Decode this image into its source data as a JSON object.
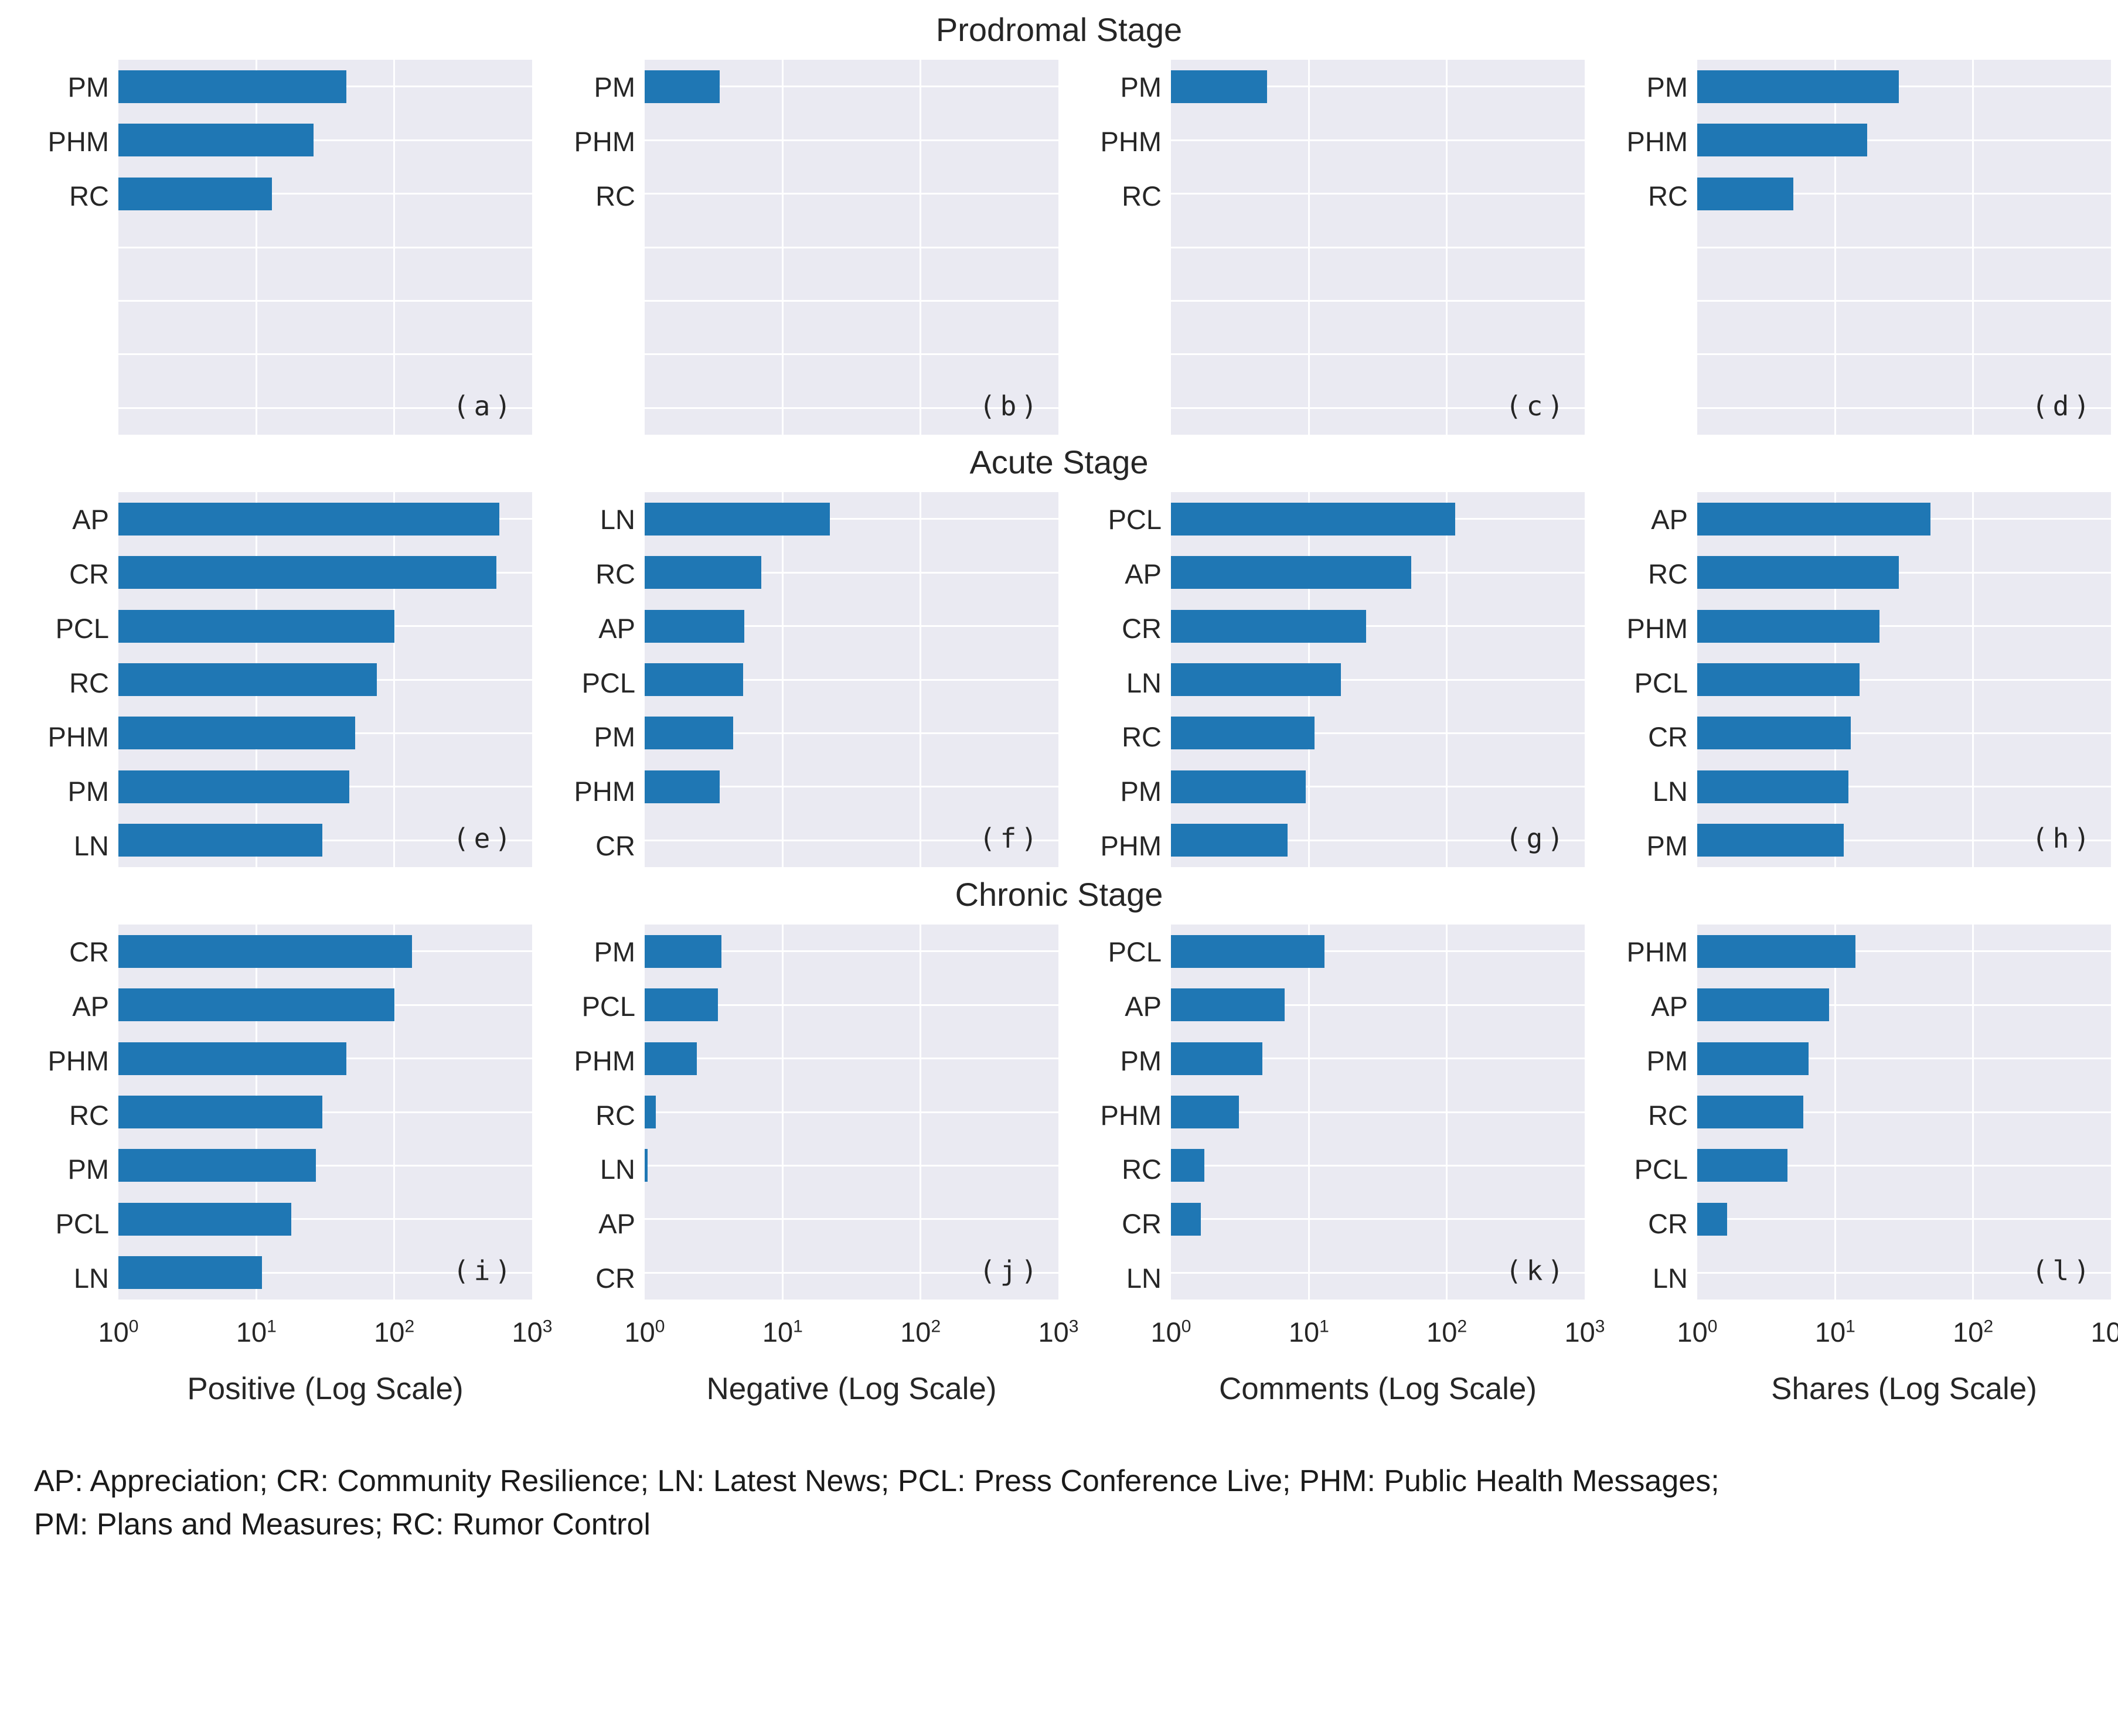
{
  "figure": {
    "row_titles": [
      "Prodromal Stage",
      "Acute Stage",
      "Chronic Stage"
    ],
    "x_axis_labels": [
      "Positive (Log Scale)",
      "Negative (Log Scale)",
      "Comments (Log Scale)",
      "Shares (Log Scale)"
    ],
    "x_ticks": {
      "base": "10",
      "exponents": [
        "0",
        "1",
        "2",
        "3"
      ]
    },
    "footnote_line1": "AP: Appreciation; CR: Community Resilience; LN: Latest News; PCL: Press Conference Live; PHM: Public Health Messages;",
    "footnote_line2": "PM: Plans and Measures; RC: Rumor Control",
    "colors": {
      "bar": "#1f77b4",
      "plot_bg": "#eaeaf2",
      "grid": "#ffffff",
      "text": "#262626"
    }
  },
  "chart_data": [
    {
      "type": "bar",
      "orientation": "horizontal",
      "x_scale": "log",
      "x_range": [
        1,
        1000
      ],
      "panel_label": "(a)",
      "stage": "Prodromal",
      "metric": "Positive",
      "categories": [
        "PM",
        "PHM",
        "RC"
      ],
      "values": [
        45,
        26,
        13
      ]
    },
    {
      "type": "bar",
      "orientation": "horizontal",
      "x_scale": "log",
      "x_range": [
        1,
        1000
      ],
      "panel_label": "(b)",
      "stage": "Prodromal",
      "metric": "Negative",
      "categories": [
        "PM",
        "PHM",
        "RC"
      ],
      "values": [
        3.5,
        1,
        1
      ]
    },
    {
      "type": "bar",
      "orientation": "horizontal",
      "x_scale": "log",
      "x_range": [
        1,
        1000
      ],
      "panel_label": "(c)",
      "stage": "Prodromal",
      "metric": "Comments",
      "categories": [
        "PM",
        "PHM",
        "RC"
      ],
      "values": [
        5,
        1,
        1
      ]
    },
    {
      "type": "bar",
      "orientation": "horizontal",
      "x_scale": "log",
      "x_range": [
        1,
        1000
      ],
      "panel_label": "(d)",
      "stage": "Prodromal",
      "metric": "Shares",
      "categories": [
        "PM",
        "PHM",
        "RC"
      ],
      "values": [
        29,
        17,
        5
      ]
    },
    {
      "type": "bar",
      "orientation": "horizontal",
      "x_scale": "log",
      "x_range": [
        1,
        1000
      ],
      "panel_label": "(e)",
      "stage": "Acute",
      "metric": "Positive",
      "categories": [
        "AP",
        "CR",
        "PCL",
        "RC",
        "PHM",
        "PM",
        "LN"
      ],
      "values": [
        580,
        550,
        100,
        75,
        52,
        47,
        30
      ]
    },
    {
      "type": "bar",
      "orientation": "horizontal",
      "x_scale": "log",
      "x_range": [
        1,
        1000
      ],
      "panel_label": "(f)",
      "stage": "Acute",
      "metric": "Negative",
      "categories": [
        "LN",
        "RC",
        "AP",
        "PCL",
        "PM",
        "PHM",
        "CR"
      ],
      "values": [
        22,
        7,
        5.3,
        5.2,
        4.4,
        3.5,
        1
      ]
    },
    {
      "type": "bar",
      "orientation": "horizontal",
      "x_scale": "log",
      "x_range": [
        1,
        1000
      ],
      "panel_label": "(g)",
      "stage": "Acute",
      "metric": "Comments",
      "categories": [
        "PCL",
        "AP",
        "CR",
        "LN",
        "RC",
        "PM",
        "PHM"
      ],
      "values": [
        115,
        55,
        26,
        17,
        11,
        9.5,
        7
      ]
    },
    {
      "type": "bar",
      "orientation": "horizontal",
      "x_scale": "log",
      "x_range": [
        1,
        1000
      ],
      "panel_label": "(h)",
      "stage": "Acute",
      "metric": "Shares",
      "categories": [
        "AP",
        "RC",
        "PHM",
        "PCL",
        "CR",
        "LN",
        "PM"
      ],
      "values": [
        49,
        29,
        21,
        15,
        13,
        12.5,
        11.5
      ]
    },
    {
      "type": "bar",
      "orientation": "horizontal",
      "x_scale": "log",
      "x_range": [
        1,
        1000
      ],
      "panel_label": "(i)",
      "stage": "Chronic",
      "metric": "Positive",
      "categories": [
        "CR",
        "AP",
        "PHM",
        "RC",
        "PM",
        "PCL",
        "LN"
      ],
      "values": [
        135,
        100,
        45,
        30,
        27,
        18,
        11
      ]
    },
    {
      "type": "bar",
      "orientation": "horizontal",
      "x_scale": "log",
      "x_range": [
        1,
        1000
      ],
      "panel_label": "(j)",
      "stage": "Chronic",
      "metric": "Negative",
      "categories": [
        "PM",
        "PCL",
        "PHM",
        "RC",
        "LN",
        "AP",
        "CR"
      ],
      "values": [
        3.6,
        3.4,
        2.4,
        1.2,
        1.05,
        1,
        1
      ]
    },
    {
      "type": "bar",
      "orientation": "horizontal",
      "x_scale": "log",
      "x_range": [
        1,
        1000
      ],
      "panel_label": "(k)",
      "stage": "Chronic",
      "metric": "Comments",
      "categories": [
        "PCL",
        "AP",
        "PM",
        "PHM",
        "RC",
        "CR",
        "LN"
      ],
      "values": [
        13,
        6.7,
        4.6,
        3.1,
        1.75,
        1.65,
        1
      ]
    },
    {
      "type": "bar",
      "orientation": "horizontal",
      "x_scale": "log",
      "x_range": [
        1,
        1000
      ],
      "panel_label": "(l)",
      "stage": "Chronic",
      "metric": "Shares",
      "categories": [
        "PHM",
        "AP",
        "PM",
        "RC",
        "PCL",
        "CR",
        "LN"
      ],
      "values": [
        14,
        9,
        6.4,
        5.9,
        4.5,
        1.65,
        1
      ]
    }
  ]
}
